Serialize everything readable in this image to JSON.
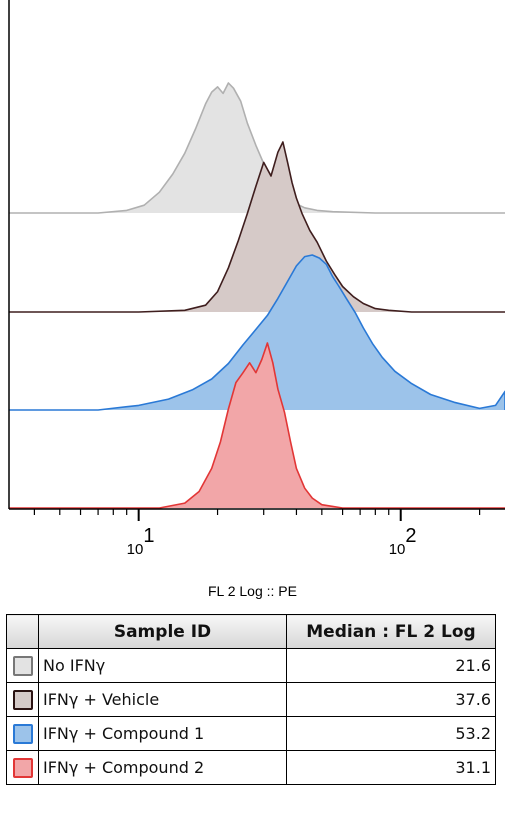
{
  "chart_data": {
    "type": "histogram",
    "display": "offset",
    "xlabel": "FL 2 Log :: PE",
    "xscale": "log",
    "xlim": [
      3.2,
      250
    ],
    "x_ticks": [
      {
        "value": 10,
        "base": "10",
        "exp": "1"
      },
      {
        "value": 100,
        "base": "10",
        "exp": "2"
      }
    ],
    "series": [
      {
        "name": "No IFNγ",
        "fill": "#e3e3e3",
        "stroke": "#b0b0b0",
        "x": [
          5.0,
          7.0,
          9.0,
          10.5,
          12.0,
          13.5,
          15.0,
          16.5,
          18.0,
          19.0,
          20.0,
          21.0,
          22.0,
          23.0,
          24.5,
          26.0,
          28.0,
          30.0,
          32.0,
          34.0,
          36.0,
          38.0,
          40.0,
          43.0,
          48.0,
          55.0,
          80.0,
          150.0
        ],
        "y": [
          0,
          0,
          0.02,
          0.06,
          0.16,
          0.3,
          0.46,
          0.65,
          0.84,
          0.93,
          0.97,
          0.92,
          1.0,
          0.96,
          0.86,
          0.69,
          0.52,
          0.38,
          0.29,
          0.22,
          0.14,
          0.1,
          0.07,
          0.04,
          0.02,
          0.01,
          0,
          0
        ]
      },
      {
        "name": "IFNγ + Vehicle",
        "fill": "#d6cac8",
        "stroke": "#3f1e1e",
        "x": [
          10.0,
          15.0,
          18.0,
          20.0,
          22.0,
          24.0,
          26.0,
          28.0,
          30.0,
          32.0,
          34.0,
          35.5,
          37.0,
          38.5,
          40.0,
          42.0,
          45.0,
          48.0,
          52.0,
          56.0,
          60.0,
          66.0,
          72.0,
          80.0,
          90.0,
          110.0,
          150.0
        ],
        "y": [
          0,
          0.01,
          0.04,
          0.12,
          0.26,
          0.42,
          0.58,
          0.74,
          0.88,
          0.8,
          0.94,
          1.0,
          0.88,
          0.76,
          0.67,
          0.58,
          0.48,
          0.41,
          0.3,
          0.22,
          0.15,
          0.09,
          0.05,
          0.02,
          0.01,
          0,
          0
        ]
      },
      {
        "name": "IFNγ + Compound 1",
        "fill": "#9cc3ea",
        "stroke": "#2a79d6",
        "x": [
          7.0,
          10.0,
          13.0,
          16.0,
          19.0,
          22.0,
          25.0,
          28.0,
          31.0,
          34.0,
          37.0,
          40.0,
          43.0,
          46.0,
          49.0,
          52.0,
          55.0,
          58.0,
          62.0,
          67.0,
          72.0,
          78.0,
          85.0,
          95.0,
          110.0,
          130.0,
          160.0,
          200.0,
          230.0,
          250.0
        ],
        "y": [
          0,
          0.03,
          0.07,
          0.13,
          0.2,
          0.3,
          0.42,
          0.52,
          0.61,
          0.72,
          0.83,
          0.93,
          0.99,
          1.0,
          0.98,
          0.94,
          0.86,
          0.8,
          0.72,
          0.63,
          0.53,
          0.43,
          0.34,
          0.25,
          0.17,
          0.1,
          0.05,
          0.01,
          0.03,
          0.12
        ]
      },
      {
        "name": "IFNγ + Compound 2",
        "fill": "#f2a6a8",
        "stroke": "#e23636",
        "x": [
          12.0,
          15.0,
          17.0,
          19.0,
          20.5,
          22.0,
          23.5,
          25.0,
          26.5,
          28.0,
          29.5,
          31.0,
          32.5,
          34.0,
          36.0,
          38.0,
          40.0,
          43.0,
          46.0,
          50.0,
          55.0,
          60.0,
          70.0
        ],
        "y": [
          0,
          0.03,
          0.1,
          0.24,
          0.4,
          0.6,
          0.76,
          0.82,
          0.88,
          0.82,
          0.9,
          1.0,
          0.88,
          0.72,
          0.58,
          0.4,
          0.24,
          0.12,
          0.06,
          0.02,
          0.01,
          0,
          0
        ]
      }
    ]
  },
  "table": {
    "headers": {
      "sample": "Sample ID",
      "median": "Median : FL 2 Log"
    },
    "rows": [
      {
        "name": "No IFNγ",
        "median": "21.6",
        "color": "#e3e3e3",
        "border": "#777777"
      },
      {
        "name": "IFNγ + Vehicle",
        "median": "37.6",
        "color": "#d6cac8",
        "border": "#2b1212"
      },
      {
        "name": "IFNγ + Compound 1",
        "median": "53.2",
        "color": "#9cc3ea",
        "border": "#2a79d6"
      },
      {
        "name": "IFNγ + Compound 2",
        "median": "31.1",
        "color": "#f2a6a8",
        "border": "#e23636"
      }
    ]
  }
}
